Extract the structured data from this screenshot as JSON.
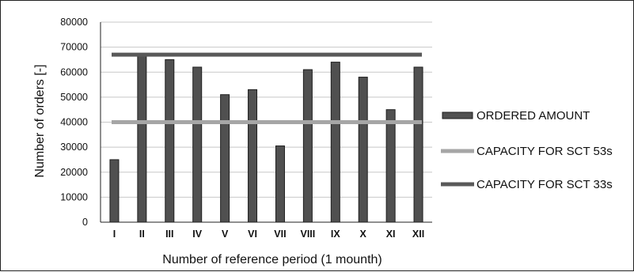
{
  "chart_data": {
    "type": "bar",
    "title": "",
    "xlabel": "Number of reference period (1 mounth)",
    "ylabel": "Number of orders [-]",
    "ylim": [
      0,
      80000
    ],
    "yticks": [
      0,
      10000,
      20000,
      30000,
      40000,
      50000,
      60000,
      70000,
      80000
    ],
    "grid": true,
    "legend_position": "right",
    "categories": [
      "I",
      "II",
      "III",
      "IV",
      "V",
      "VI",
      "VII",
      "VIII",
      "IX",
      "X",
      "XI",
      "XII"
    ],
    "series": [
      {
        "name": "ORDERED AMOUNT",
        "type": "bar",
        "color": "#505050",
        "values": [
          25000,
          67000,
          65000,
          62000,
          51000,
          53000,
          30500,
          61000,
          64000,
          58000,
          45000,
          62000
        ]
      },
      {
        "name": "CAPACITY FOR SCT 53s",
        "type": "line",
        "color": "#a6a6a6",
        "value": 40000
      },
      {
        "name": "CAPACITY FOR SCT 33s",
        "type": "line",
        "color": "#595959",
        "value": 67000
      }
    ]
  }
}
